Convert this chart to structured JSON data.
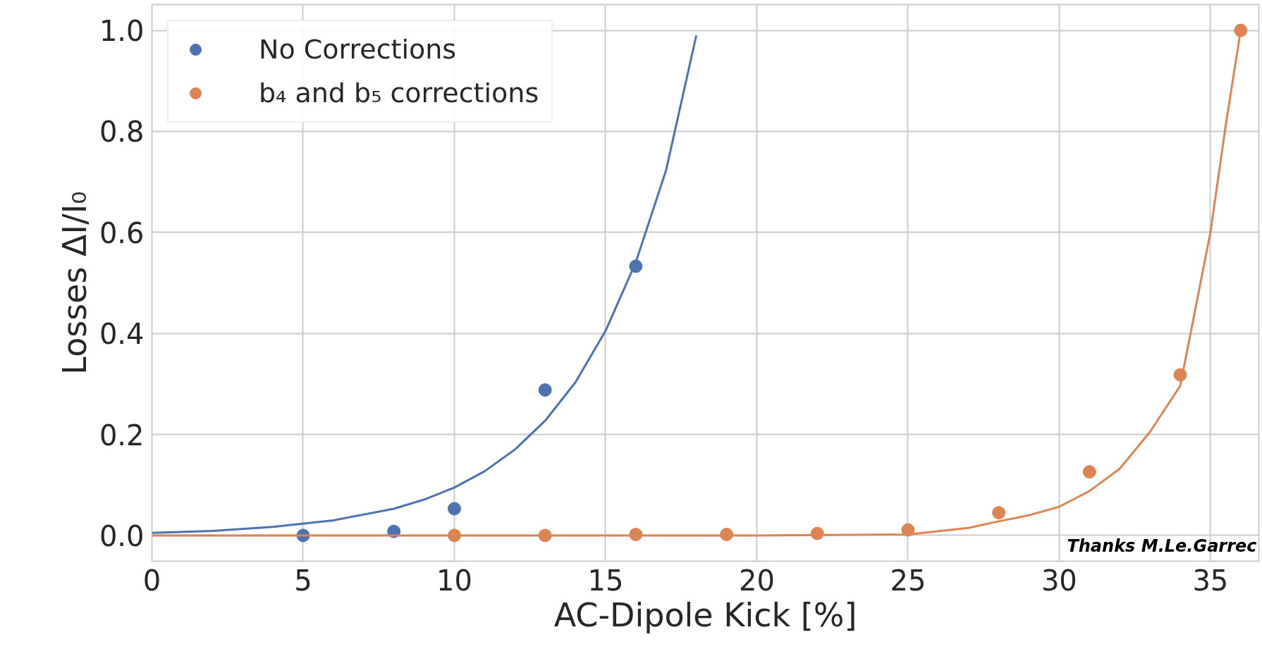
{
  "chart_data": {
    "type": "scatter",
    "xlabel": "AC-Dipole Kick [%]",
    "ylabel": "Losses ΔI/I₀",
    "xlim": [
      0,
      36.6
    ],
    "ylim": [
      -0.051,
      1.051
    ],
    "xticks": [
      0,
      5,
      10,
      15,
      20,
      25,
      30,
      35
    ],
    "yticks": [
      {
        "value": 0,
        "label": "0.0"
      },
      0.2,
      0.4,
      0.6,
      0.8,
      {
        "value": 1,
        "label": "1.0"
      }
    ],
    "grid": true,
    "legend": "top left",
    "annotations": [
      "Thanks M.Le.Garrec"
    ],
    "series": [
      {
        "name": "No Corrections",
        "marker": "circle",
        "color": "#4c72b0",
        "x": [
          5,
          8,
          10,
          13,
          16
        ],
        "values": [
          0.0,
          0.008,
          0.053,
          0.288,
          0.533
        ]
      },
      {
        "name": "b₄ and b₅ corrections",
        "marker": "circle",
        "color": "#dd8452",
        "x": [
          10,
          13,
          16,
          19,
          22,
          25,
          28,
          31,
          34,
          36
        ],
        "values": [
          0.0,
          0.0,
          0.002,
          0.002,
          0.004,
          0.011,
          0.045,
          0.126,
          0.318,
          1.0
        ]
      },
      {
        "type": "line",
        "marker": "none",
        "color": "#4c72b0",
        "x": [
          0,
          2,
          4,
          6,
          8,
          9,
          10,
          11,
          12,
          13,
          14,
          15,
          16,
          17,
          18
        ],
        "values": [
          0.005,
          0.009,
          0.017,
          0.03,
          0.053,
          0.071,
          0.095,
          0.127,
          0.17,
          0.227,
          0.303,
          0.405,
          0.541,
          0.723,
          0.99
        ]
      },
      {
        "type": "line",
        "marker": "none",
        "color": "#dd8452",
        "x": [
          0,
          10,
          20,
          25,
          27,
          28,
          29,
          30,
          31,
          32,
          33,
          34,
          35,
          35.5,
          36
        ],
        "values": [
          0.0,
          0.0,
          0.0,
          0.002,
          0.015,
          0.028,
          0.04,
          0.057,
          0.088,
          0.132,
          0.205,
          0.296,
          0.6,
          0.81,
          1.0
        ]
      }
    ]
  }
}
